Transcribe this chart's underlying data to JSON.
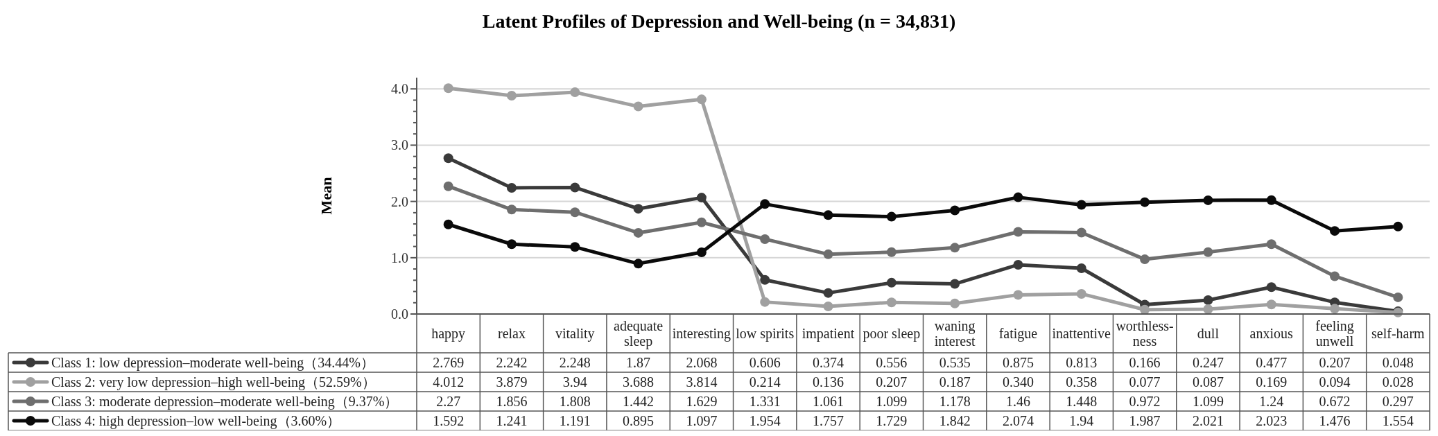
{
  "chart_data": {
    "type": "line",
    "title": "Latent Profiles of Depression and Well-being (n = 34,831)",
    "ylabel": "Mean",
    "categories": [
      "happy",
      "relax",
      "vitality",
      "adequate sleep",
      "interesting",
      "low spirits",
      "impatient",
      "poor sleep",
      "waning interest",
      "fatigue",
      "inattentive",
      "worthless-ness",
      "dull",
      "anxious",
      "feeling unwell",
      "self-harm"
    ],
    "series": [
      {
        "name": "Class 1: low depression–moderate well-being（34.44%）",
        "color": "#3a3a3a",
        "values": [
          2.769,
          2.242,
          2.248,
          1.87,
          2.068,
          0.606,
          0.374,
          0.556,
          0.535,
          0.875,
          0.813,
          0.166,
          0.247,
          0.477,
          0.207,
          0.048
        ],
        "value_labels": [
          "2.769",
          "2.242",
          "2.248",
          "1.87",
          "2.068",
          "0.606",
          "0.374",
          "0.556",
          "0.535",
          "0.875",
          "0.813",
          "0.166",
          "0.247",
          "0.477",
          "0.207",
          "0.048"
        ]
      },
      {
        "name": "Class 2: very low depression–high well-being（52.59%）",
        "color": "#a0a0a0",
        "values": [
          4.012,
          3.879,
          3.94,
          3.688,
          3.814,
          0.214,
          0.136,
          0.207,
          0.187,
          0.34,
          0.358,
          0.077,
          0.087,
          0.169,
          0.094,
          0.028
        ],
        "value_labels": [
          "4.012",
          "3.879",
          "3.94",
          "3.688",
          "3.814",
          "0.214",
          "0.136",
          "0.207",
          "0.187",
          "0.340",
          "0.358",
          "0.077",
          "0.087",
          "0.169",
          "0.094",
          "0.028"
        ]
      },
      {
        "name": "Class 3: moderate depression–moderate well-being（9.37%）",
        "color": "#6e6e6e",
        "values": [
          2.27,
          1.856,
          1.808,
          1.442,
          1.629,
          1.331,
          1.061,
          1.099,
          1.178,
          1.46,
          1.448,
          0.972,
          1.099,
          1.24,
          0.672,
          0.297
        ],
        "value_labels": [
          "2.27",
          "1.856",
          "1.808",
          "1.442",
          "1.629",
          "1.331",
          "1.061",
          "1.099",
          "1.178",
          "1.46",
          "1.448",
          "0.972",
          "1.099",
          "1.24",
          "0.672",
          "0.297"
        ]
      },
      {
        "name": "Class 4: high depression–low well-being（3.60%）",
        "color": "#0a0a0a",
        "values": [
          1.592,
          1.241,
          1.191,
          0.895,
          1.097,
          1.954,
          1.757,
          1.729,
          1.842,
          2.074,
          1.94,
          1.987,
          2.021,
          2.023,
          1.476,
          1.554
        ],
        "value_labels": [
          "1.592",
          "1.241",
          "1.191",
          "0.895",
          "1.097",
          "1.954",
          "1.757",
          "1.729",
          "1.842",
          "2.074",
          "1.94",
          "1.987",
          "2.021",
          "2.023",
          "1.476",
          "1.554"
        ]
      }
    ],
    "ylim": [
      0,
      4.2
    ],
    "yticks": [
      {
        "value": 0,
        "label": "0.0"
      },
      {
        "value": 0.2,
        "label": null
      },
      {
        "value": 0.4,
        "label": null
      },
      {
        "value": 0.6,
        "label": null
      },
      {
        "value": 0.8,
        "label": null
      },
      {
        "value": 1,
        "label": "1.0"
      },
      {
        "value": 1.2,
        "label": null
      },
      {
        "value": 1.4,
        "label": null
      },
      {
        "value": 1.6,
        "label": null
      },
      {
        "value": 1.8,
        "label": null
      },
      {
        "value": 2,
        "label": "2.0"
      },
      {
        "value": 2.2,
        "label": null
      },
      {
        "value": 2.4,
        "label": null
      },
      {
        "value": 2.6,
        "label": null
      },
      {
        "value": 2.8,
        "label": null
      },
      {
        "value": 3,
        "label": "3.0"
      },
      {
        "value": 3.2,
        "label": null
      },
      {
        "value": 3.4,
        "label": null
      },
      {
        "value": 3.6,
        "label": null
      },
      {
        "value": 3.8,
        "label": null
      },
      {
        "value": 4,
        "label": "4.0"
      }
    ],
    "grid": "y",
    "legend": "bottom left",
    "marker": "circle",
    "line_style": "solid"
  }
}
